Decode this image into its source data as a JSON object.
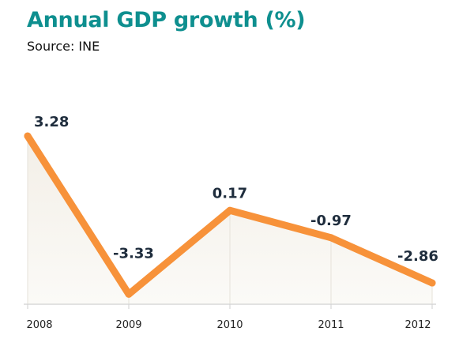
{
  "chart_data": {
    "type": "line",
    "title": "Annual GDP growth (%)",
    "subtitle": "Source: INE",
    "categories": [
      "2008",
      "2009",
      "2010",
      "2011",
      "2012"
    ],
    "values": [
      3.28,
      -3.33,
      0.17,
      -0.97,
      -2.86
    ],
    "data_labels": [
      "3.28",
      "-3.33",
      "0.17",
      "-0.97",
      "-2.86"
    ],
    "ylim": [
      -3.75,
      5.0
    ],
    "grid": false,
    "line_color": "#f7923a",
    "fill_color": "#f7f4ef",
    "title_color": "#0e8f8f"
  }
}
